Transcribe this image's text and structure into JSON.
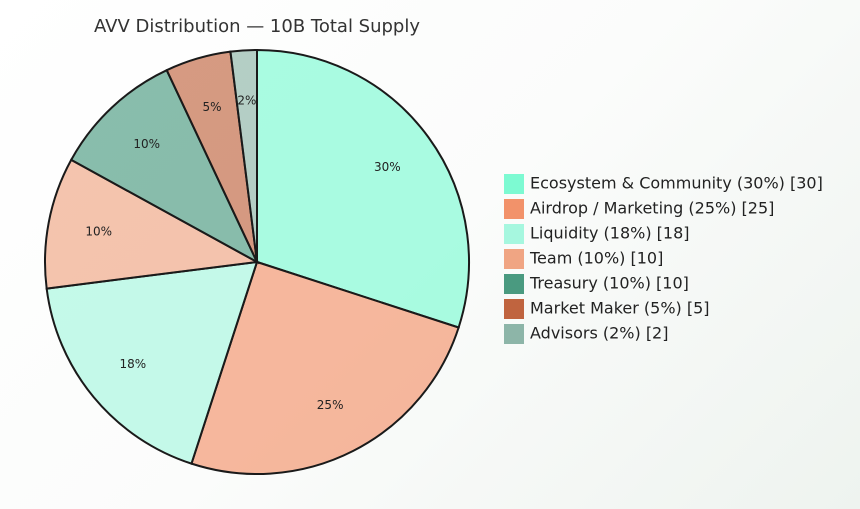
{
  "chart_data": {
    "type": "pie",
    "title": "AVV Distribution — 10B Total Supply",
    "categories": [
      "Ecosystem & Community (30%) [30]",
      "Airdrop / Marketing (25%) [25]",
      "Liquidity (18%) [18]",
      "Team (10%) [10]",
      "Treasury (10%) [10]",
      "Market Maker (5%) [5]",
      "Advisors (2%) [2]"
    ],
    "values": [
      30,
      25,
      18,
      10,
      10,
      5,
      2
    ],
    "value_labels": [
      "30%",
      "25%",
      "18%",
      "10%",
      "10%",
      "5%",
      "2%"
    ],
    "colors": [
      "#7dfad2",
      "#f2926a",
      "#a6f7df",
      "#f0a583",
      "#4a9a80",
      "#c0643f",
      "#8db5a8"
    ],
    "legend": "right"
  }
}
